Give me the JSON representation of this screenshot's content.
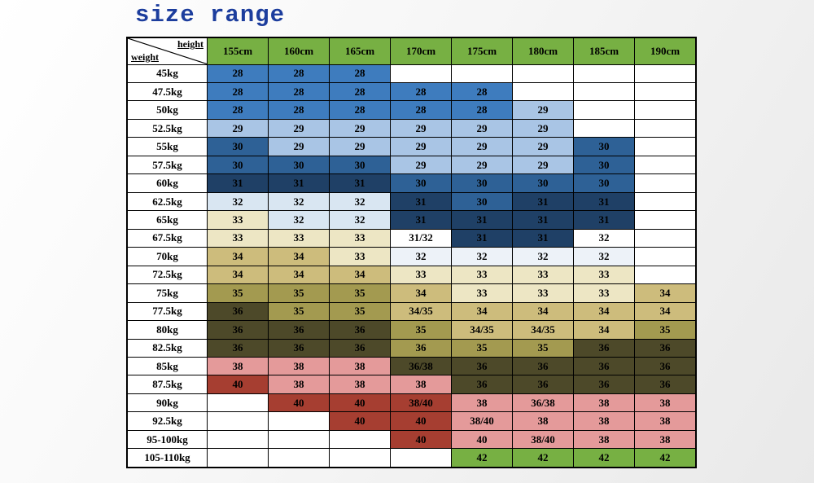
{
  "chart_data": {
    "type": "heatmap",
    "title": "size range",
    "x_axis_label": "height",
    "y_axis_label": "weight",
    "x_categories": [
      "155cm",
      "160cm",
      "165cm",
      "170cm",
      "175cm",
      "180cm",
      "185cm",
      "190cm"
    ],
    "y_categories": [
      "45kg",
      "47.5kg",
      "50kg",
      "52.5kg",
      "55kg",
      "57.5kg",
      "60kg",
      "62.5kg",
      "65kg",
      "67.5kg",
      "70kg",
      "72.5kg",
      "75kg",
      "77.5kg",
      "80kg",
      "82.5kg",
      "85kg",
      "87.5kg",
      "90kg",
      "92.5kg",
      "95-100kg",
      "105-110kg"
    ],
    "palette": {
      "title-blue": "#1C3D9D",
      "header-green": "#77B043",
      "blue-28": "#3E7CBE",
      "blue-29": "#A9C5E5",
      "blue-30": "#2E6196",
      "blue-31": "#1F4066",
      "blue-32": "#D9E6F2",
      "blue-32-pale": "#EDF2F8",
      "white": "#FFFFFF",
      "tan-33": "#EDE6C4",
      "tan-34": "#CDBC7C",
      "olive-35": "#A39A50",
      "olive-36": "#4D4929",
      "pink-38": "#E49A9A",
      "red-40": "#A63E31",
      "green-42": "#77B043"
    },
    "rows": [
      {
        "weight": "45kg",
        "cells": [
          [
            "28",
            "blue-28"
          ],
          [
            "28",
            "blue-28"
          ],
          [
            "28",
            "blue-28"
          ],
          null,
          null,
          null,
          null,
          null
        ]
      },
      {
        "weight": "47.5kg",
        "cells": [
          [
            "28",
            "blue-28"
          ],
          [
            "28",
            "blue-28"
          ],
          [
            "28",
            "blue-28"
          ],
          [
            "28",
            "blue-28"
          ],
          [
            "28",
            "blue-28"
          ],
          null,
          null,
          null
        ]
      },
      {
        "weight": "50kg",
        "cells": [
          [
            "28",
            "blue-28"
          ],
          [
            "28",
            "blue-28"
          ],
          [
            "28",
            "blue-28"
          ],
          [
            "28",
            "blue-28"
          ],
          [
            "28",
            "blue-28"
          ],
          [
            "29",
            "blue-29"
          ],
          null,
          null
        ]
      },
      {
        "weight": "52.5kg",
        "cells": [
          [
            "29",
            "blue-29"
          ],
          [
            "29",
            "blue-29"
          ],
          [
            "29",
            "blue-29"
          ],
          [
            "29",
            "blue-29"
          ],
          [
            "29",
            "blue-29"
          ],
          [
            "29",
            "blue-29"
          ],
          null,
          null
        ]
      },
      {
        "weight": "55kg",
        "cells": [
          [
            "30",
            "blue-30"
          ],
          [
            "29",
            "blue-29"
          ],
          [
            "29",
            "blue-29"
          ],
          [
            "29",
            "blue-29"
          ],
          [
            "29",
            "blue-29"
          ],
          [
            "29",
            "blue-29"
          ],
          [
            "30",
            "blue-30"
          ],
          null
        ]
      },
      {
        "weight": "57.5kg",
        "cells": [
          [
            "30",
            "blue-30"
          ],
          [
            "30",
            "blue-30"
          ],
          [
            "30",
            "blue-30"
          ],
          [
            "29",
            "blue-29"
          ],
          [
            "29",
            "blue-29"
          ],
          [
            "29",
            "blue-29"
          ],
          [
            "30",
            "blue-30"
          ],
          null
        ]
      },
      {
        "weight": "60kg",
        "cells": [
          [
            "31",
            "blue-31"
          ],
          [
            "31",
            "blue-31"
          ],
          [
            "31",
            "blue-31"
          ],
          [
            "30",
            "blue-30"
          ],
          [
            "30",
            "blue-30"
          ],
          [
            "30",
            "blue-30"
          ],
          [
            "30",
            "blue-30"
          ],
          null
        ]
      },
      {
        "weight": "62.5kg",
        "cells": [
          [
            "32",
            "blue-32"
          ],
          [
            "32",
            "blue-32"
          ],
          [
            "32",
            "blue-32"
          ],
          [
            "31",
            "blue-31"
          ],
          [
            "30",
            "blue-30"
          ],
          [
            "31",
            "blue-31"
          ],
          [
            "31",
            "blue-31"
          ],
          null
        ]
      },
      {
        "weight": "65kg",
        "cells": [
          [
            "33",
            "tan-33"
          ],
          [
            "32",
            "blue-32"
          ],
          [
            "32",
            "blue-32"
          ],
          [
            "31",
            "blue-31"
          ],
          [
            "31",
            "blue-31"
          ],
          [
            "31",
            "blue-31"
          ],
          [
            "31",
            "blue-31"
          ],
          null
        ]
      },
      {
        "weight": "67.5kg",
        "cells": [
          [
            "33",
            "tan-33"
          ],
          [
            "33",
            "tan-33"
          ],
          [
            "33",
            "tan-33"
          ],
          [
            "31/32",
            "white"
          ],
          [
            "31",
            "blue-31"
          ],
          [
            "31",
            "blue-31"
          ],
          [
            "32",
            "white"
          ],
          null
        ]
      },
      {
        "weight": "70kg",
        "cells": [
          [
            "34",
            "tan-34"
          ],
          [
            "34",
            "tan-34"
          ],
          [
            "33",
            "tan-33"
          ],
          [
            "32",
            "blue-32-pale"
          ],
          [
            "32",
            "blue-32-pale"
          ],
          [
            "32",
            "blue-32-pale"
          ],
          [
            "32",
            "blue-32-pale"
          ],
          null
        ]
      },
      {
        "weight": "72.5kg",
        "cells": [
          [
            "34",
            "tan-34"
          ],
          [
            "34",
            "tan-34"
          ],
          [
            "34",
            "tan-34"
          ],
          [
            "33",
            "tan-33"
          ],
          [
            "33",
            "tan-33"
          ],
          [
            "33",
            "tan-33"
          ],
          [
            "33",
            "tan-33"
          ],
          null
        ]
      },
      {
        "weight": "75kg",
        "cells": [
          [
            "35",
            "olive-35"
          ],
          [
            "35",
            "olive-35"
          ],
          [
            "35",
            "olive-35"
          ],
          [
            "34",
            "tan-34"
          ],
          [
            "33",
            "tan-33"
          ],
          [
            "33",
            "tan-33"
          ],
          [
            "33",
            "tan-33"
          ],
          [
            "34",
            "tan-34"
          ]
        ]
      },
      {
        "weight": "77.5kg",
        "cells": [
          [
            "36",
            "olive-36"
          ],
          [
            "35",
            "olive-35"
          ],
          [
            "35",
            "olive-35"
          ],
          [
            "34/35",
            "tan-34"
          ],
          [
            "34",
            "tan-34"
          ],
          [
            "34",
            "tan-34"
          ],
          [
            "34",
            "tan-34"
          ],
          [
            "34",
            "tan-34"
          ]
        ]
      },
      {
        "weight": "80kg",
        "cells": [
          [
            "36",
            "olive-36"
          ],
          [
            "36",
            "olive-36"
          ],
          [
            "36",
            "olive-36"
          ],
          [
            "35",
            "olive-35"
          ],
          [
            "34/35",
            "tan-34"
          ],
          [
            "34/35",
            "tan-34"
          ],
          [
            "34",
            "tan-34"
          ],
          [
            "35",
            "olive-35"
          ]
        ]
      },
      {
        "weight": "82.5kg",
        "cells": [
          [
            "36",
            "olive-36"
          ],
          [
            "36",
            "olive-36"
          ],
          [
            "36",
            "olive-36"
          ],
          [
            "36",
            "olive-35"
          ],
          [
            "35",
            "olive-35"
          ],
          [
            "35",
            "olive-35"
          ],
          [
            "36",
            "olive-36"
          ],
          [
            "36",
            "olive-36"
          ]
        ]
      },
      {
        "weight": "85kg",
        "cells": [
          [
            "38",
            "pink-38"
          ],
          [
            "38",
            "pink-38"
          ],
          [
            "38",
            "pink-38"
          ],
          [
            "36/38",
            "olive-36"
          ],
          [
            "36",
            "olive-36"
          ],
          [
            "36",
            "olive-36"
          ],
          [
            "36",
            "olive-36"
          ],
          [
            "36",
            "olive-36"
          ]
        ]
      },
      {
        "weight": "87.5kg",
        "cells": [
          [
            "40",
            "red-40"
          ],
          [
            "38",
            "pink-38"
          ],
          [
            "38",
            "pink-38"
          ],
          [
            "38",
            "pink-38"
          ],
          [
            "36",
            "olive-36"
          ],
          [
            "36",
            "olive-36"
          ],
          [
            "36",
            "olive-36"
          ],
          [
            "36",
            "olive-36"
          ]
        ]
      },
      {
        "weight": "90kg",
        "cells": [
          null,
          [
            "40",
            "red-40"
          ],
          [
            "40",
            "red-40"
          ],
          [
            "38/40",
            "red-40"
          ],
          [
            "38",
            "pink-38"
          ],
          [
            "36/38",
            "pink-38"
          ],
          [
            "38",
            "pink-38"
          ],
          [
            "38",
            "pink-38"
          ]
        ]
      },
      {
        "weight": "92.5kg",
        "cells": [
          null,
          null,
          [
            "40",
            "red-40"
          ],
          [
            "40",
            "red-40"
          ],
          [
            "38/40",
            "pink-38"
          ],
          [
            "38",
            "pink-38"
          ],
          [
            "38",
            "pink-38"
          ],
          [
            "38",
            "pink-38"
          ]
        ]
      },
      {
        "weight": "95-100kg",
        "cells": [
          null,
          null,
          null,
          [
            "40",
            "red-40"
          ],
          [
            "40",
            "pink-38"
          ],
          [
            "38/40",
            "pink-38"
          ],
          [
            "38",
            "pink-38"
          ],
          [
            "38",
            "pink-38"
          ]
        ]
      },
      {
        "weight": "105-110kg",
        "cells": [
          null,
          null,
          null,
          null,
          [
            "42",
            "green-42"
          ],
          [
            "42",
            "green-42"
          ],
          [
            "42",
            "green-42"
          ],
          [
            "42",
            "green-42"
          ]
        ]
      }
    ]
  }
}
